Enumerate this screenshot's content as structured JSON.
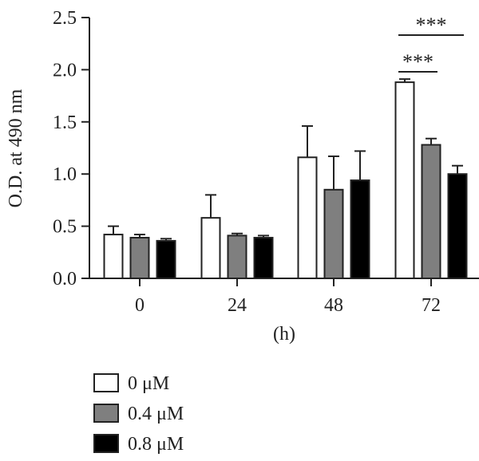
{
  "chart_data": {
    "type": "bar",
    "xlabel": "(h)",
    "ylabel": "O.D. at 490 nm",
    "categories": [
      "0",
      "24",
      "48",
      "72"
    ],
    "ylim": [
      0,
      2.5
    ],
    "yticks": [
      0.0,
      0.5,
      1.0,
      1.5,
      2.0,
      2.5
    ],
    "ytick_labels": [
      "0.0",
      "0.5",
      "1.0",
      "1.5",
      "2.0",
      "2.5"
    ],
    "error_bars": "upper only",
    "series": [
      {
        "name": "0 μM",
        "color": "#ffffff",
        "values": [
          0.42,
          0.58,
          1.16,
          1.88
        ],
        "errors": [
          0.08,
          0.22,
          0.3,
          0.03
        ]
      },
      {
        "name": "0.4 μM",
        "color": "#7f7f7f",
        "values": [
          0.39,
          0.41,
          0.85,
          1.28
        ],
        "errors": [
          0.03,
          0.02,
          0.32,
          0.06
        ]
      },
      {
        "name": "0.8 μM",
        "color": "#000000",
        "values": [
          0.36,
          0.39,
          0.94,
          1.0
        ],
        "errors": [
          0.02,
          0.02,
          0.28,
          0.08
        ]
      }
    ],
    "significance": [
      {
        "category": "72",
        "from_series": 0,
        "to_series": 1,
        "label": "***"
      },
      {
        "category": "72",
        "from_series": 0,
        "to_series": 2,
        "label": "***"
      }
    ],
    "legend_position": "bottom-left"
  }
}
